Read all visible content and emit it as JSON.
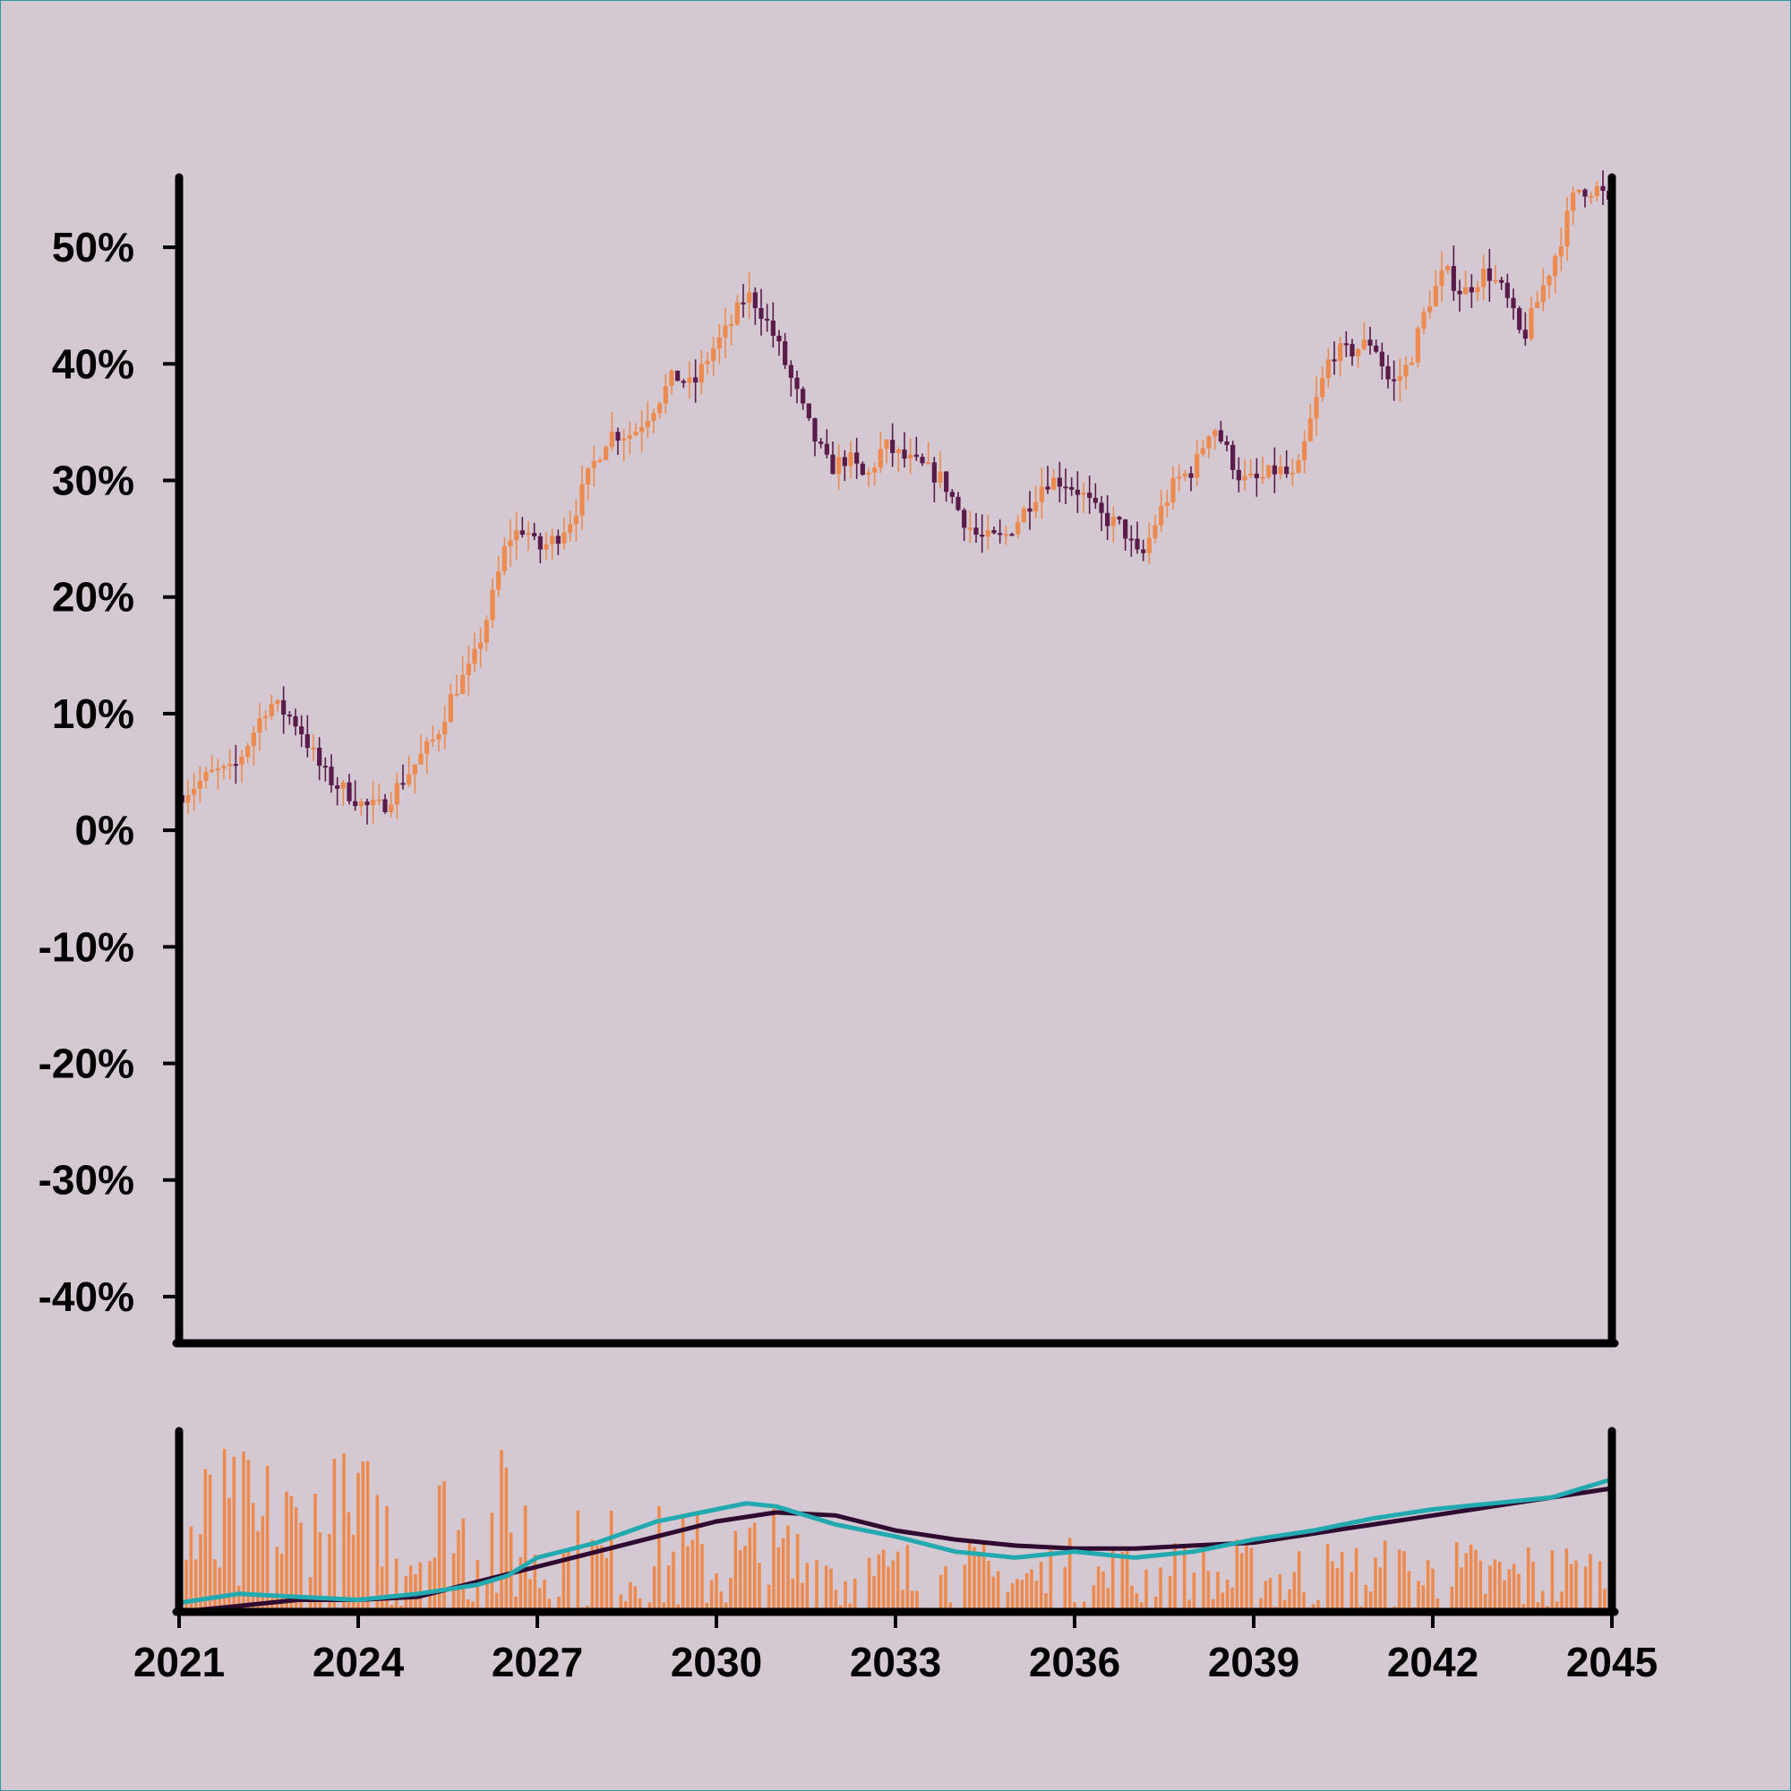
{
  "chart_data": [
    {
      "type": "candlestick",
      "panel": "price",
      "title": "",
      "xlabel": "",
      "ylabel": "",
      "ylim": [
        -44,
        56
      ],
      "xlim": [
        2021,
        2045
      ],
      "y_ticks": [
        {
          "value": 50,
          "label": "50%"
        },
        {
          "value": 40,
          "label": "40%"
        },
        {
          "value": 30,
          "label": "30%"
        },
        {
          "value": 20,
          "label": "20%"
        },
        {
          "value": 10,
          "label": "10%"
        },
        {
          "value": 0,
          "label": "0%"
        },
        {
          "value": -10,
          "label": "-10%"
        },
        {
          "value": -20,
          "label": "-20%"
        },
        {
          "value": -30,
          "label": "-30%"
        },
        {
          "value": -40,
          "label": "-40%"
        }
      ],
      "grid": false,
      "colors": {
        "up": "#ee8a4e",
        "down": "#5a1a4a"
      },
      "close_path": [
        [
          2021.0,
          3
        ],
        [
          2021.3,
          4
        ],
        [
          2021.6,
          5
        ],
        [
          2021.9,
          5
        ],
        [
          2022.1,
          7
        ],
        [
          2022.3,
          9
        ],
        [
          2022.5,
          11
        ],
        [
          2022.8,
          10
        ],
        [
          2023.0,
          9
        ],
        [
          2023.2,
          7
        ],
        [
          2023.4,
          5
        ],
        [
          2023.6,
          4
        ],
        [
          2023.9,
          3
        ],
        [
          2024.1,
          2
        ],
        [
          2024.4,
          2
        ],
        [
          2024.7,
          4
        ],
        [
          2025.0,
          6
        ],
        [
          2025.3,
          8
        ],
        [
          2025.6,
          12
        ],
        [
          2025.9,
          14
        ],
        [
          2026.2,
          19
        ],
        [
          2026.5,
          25
        ],
        [
          2026.8,
          26
        ],
        [
          2027.0,
          24
        ],
        [
          2027.3,
          25
        ],
        [
          2027.6,
          27
        ],
        [
          2027.9,
          31
        ],
        [
          2028.2,
          34
        ],
        [
          2028.6,
          34
        ],
        [
          2028.9,
          36
        ],
        [
          2029.3,
          39
        ],
        [
          2029.6,
          38
        ],
        [
          2029.9,
          41
        ],
        [
          2030.2,
          43
        ],
        [
          2030.5,
          46
        ],
        [
          2030.7,
          45
        ],
        [
          2031.0,
          42
        ],
        [
          2031.3,
          38
        ],
        [
          2031.6,
          34
        ],
        [
          2031.9,
          31
        ],
        [
          2032.2,
          32
        ],
        [
          2032.5,
          30
        ],
        [
          2032.8,
          33
        ],
        [
          2033.1,
          32
        ],
        [
          2033.5,
          31
        ],
        [
          2033.8,
          30
        ],
        [
          2034.1,
          27
        ],
        [
          2034.4,
          25
        ],
        [
          2034.8,
          25
        ],
        [
          2035.1,
          27
        ],
        [
          2035.5,
          30
        ],
        [
          2035.8,
          30
        ],
        [
          2036.1,
          29
        ],
        [
          2036.4,
          27
        ],
        [
          2036.8,
          26
        ],
        [
          2037.1,
          23
        ],
        [
          2037.4,
          27
        ],
        [
          2037.7,
          30
        ],
        [
          2038.0,
          31
        ],
        [
          2038.3,
          35
        ],
        [
          2038.5,
          33
        ],
        [
          2038.8,
          30
        ],
        [
          2039.1,
          30
        ],
        [
          2039.4,
          31
        ],
        [
          2039.7,
          30
        ],
        [
          2040.0,
          36
        ],
        [
          2040.3,
          41
        ],
        [
          2040.6,
          41
        ],
        [
          2041.0,
          42
        ],
        [
          2041.3,
          38
        ],
        [
          2041.6,
          40
        ],
        [
          2041.9,
          45
        ],
        [
          2042.2,
          48
        ],
        [
          2042.5,
          46
        ],
        [
          2042.9,
          48
        ],
        [
          2043.2,
          46
        ],
        [
          2043.5,
          42
        ],
        [
          2043.8,
          46
        ],
        [
          2044.1,
          50
        ],
        [
          2044.4,
          55
        ],
        [
          2044.8,
          55
        ],
        [
          2045.0,
          53
        ]
      ]
    },
    {
      "type": "bar+line",
      "panel": "volume",
      "xlim": [
        2021,
        2045
      ],
      "x_ticks": [
        "2021",
        "2024",
        "2027",
        "2030",
        "2033",
        "2036",
        "2039",
        "2042",
        "2045"
      ],
      "colors": {
        "bars": "#ee8a4e",
        "fast_line": "#22aab0",
        "slow_line": "#2f0b32"
      },
      "series": [
        {
          "values": [
            [
              2021.0,
              0.3
            ],
            [
              2022.0,
              0.6
            ],
            [
              2023.0,
              0.5
            ],
            [
              2024.0,
              0.4
            ],
            [
              2025.0,
              0.6
            ],
            [
              2026.0,
              0.9
            ],
            [
              2026.5,
              1.2
            ],
            [
              2027.0,
              1.8
            ],
            [
              2028.0,
              2.3
            ],
            [
              2029.0,
              3.0
            ],
            [
              2030.0,
              3.4
            ],
            [
              2030.5,
              3.6
            ],
            [
              2031.0,
              3.5
            ],
            [
              2032.0,
              2.9
            ],
            [
              2033.0,
              2.5
            ],
            [
              2034.0,
              2.0
            ],
            [
              2035.0,
              1.8
            ],
            [
              2036.0,
              2.0
            ],
            [
              2037.0,
              1.8
            ],
            [
              2038.0,
              2.0
            ],
            [
              2039.0,
              2.4
            ],
            [
              2040.0,
              2.7
            ],
            [
              2041.0,
              3.1
            ],
            [
              2042.0,
              3.4
            ],
            [
              2043.0,
              3.6
            ],
            [
              2044.0,
              3.8
            ],
            [
              2045.0,
              4.4
            ]
          ]
        },
        {
          "values": [
            [
              2021.0,
              0.0
            ],
            [
              2022.0,
              0.2
            ],
            [
              2023.0,
              0.4
            ],
            [
              2024.0,
              0.4
            ],
            [
              2025.0,
              0.5
            ],
            [
              2026.0,
              1.0
            ],
            [
              2027.0,
              1.5
            ],
            [
              2028.0,
              2.0
            ],
            [
              2029.0,
              2.5
            ],
            [
              2030.0,
              3.0
            ],
            [
              2031.0,
              3.3
            ],
            [
              2032.0,
              3.2
            ],
            [
              2033.0,
              2.7
            ],
            [
              2034.0,
              2.4
            ],
            [
              2035.0,
              2.2
            ],
            [
              2036.0,
              2.1
            ],
            [
              2037.0,
              2.1
            ],
            [
              2038.0,
              2.2
            ],
            [
              2039.0,
              2.3
            ],
            [
              2040.0,
              2.6
            ],
            [
              2041.0,
              2.9
            ],
            [
              2042.0,
              3.2
            ],
            [
              2043.0,
              3.5
            ],
            [
              2044.0,
              3.8
            ],
            [
              2045.0,
              4.1
            ]
          ]
        }
      ]
    }
  ]
}
